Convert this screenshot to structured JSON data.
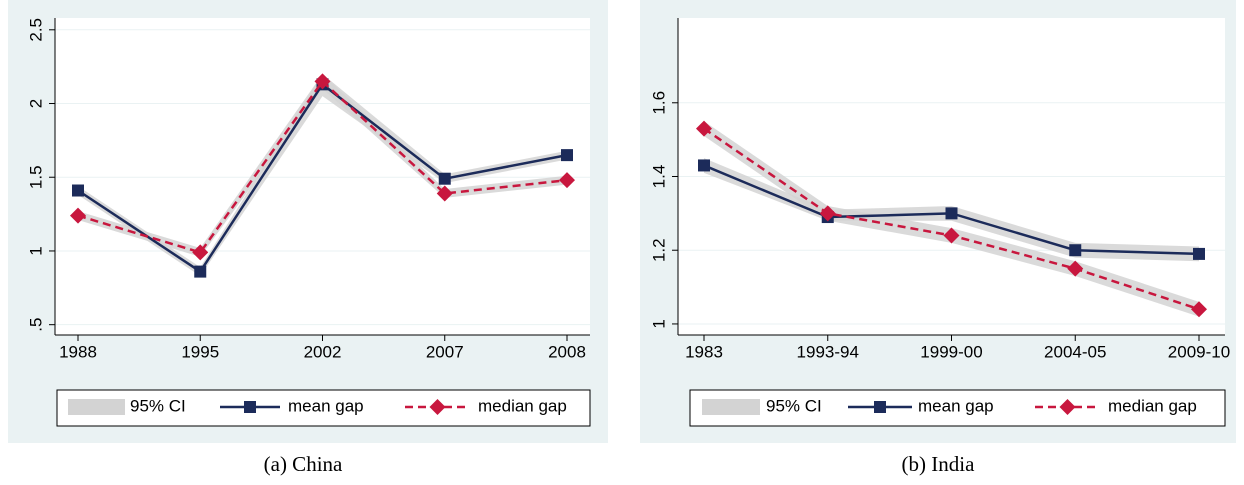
{
  "chart_data": [
    {
      "type": "line",
      "caption": "(a) China",
      "ci_label": "95% CI",
      "categories": [
        "1988",
        "1995",
        "2002",
        "2007",
        "2008"
      ],
      "ylim": [
        0.43,
        2.58
      ],
      "yticks": [
        {
          "value": 0.5,
          "label": ".5"
        },
        1,
        1.5,
        2,
        2.5
      ],
      "grid": true,
      "series": [
        {
          "name": "mean gap",
          "color": "#1c2b5a",
          "marker": "square",
          "dashed": false,
          "values": [
            1.41,
            0.86,
            2.13,
            1.49,
            1.65
          ],
          "ci_lower": [
            1.38,
            0.83,
            2.05,
            1.46,
            1.62
          ],
          "ci_upper": [
            1.44,
            0.89,
            2.2,
            1.52,
            1.68
          ]
        },
        {
          "name": "median gap",
          "color": "#c8173e",
          "marker": "diamond",
          "dashed": true,
          "values": [
            1.24,
            0.99,
            2.15,
            1.39,
            1.48
          ],
          "ci_lower": [
            1.21,
            0.96,
            2.1,
            1.36,
            1.45
          ],
          "ci_upper": [
            1.27,
            1.02,
            2.2,
            1.42,
            1.51
          ]
        }
      ]
    },
    {
      "type": "line",
      "caption": "(b) India",
      "ci_label": "95% CI",
      "categories": [
        "1983",
        "1993-94",
        "1999-00",
        "2004-05",
        "2009-10"
      ],
      "ylim": [
        0.97,
        1.83
      ],
      "yticks": [
        1,
        1.2,
        1.4,
        1.6
      ],
      "grid": true,
      "series": [
        {
          "name": "mean gap",
          "color": "#1c2b5a",
          "marker": "square",
          "dashed": false,
          "values": [
            1.43,
            1.29,
            1.3,
            1.2,
            1.19
          ],
          "ci_lower": [
            1.41,
            1.28,
            1.28,
            1.18,
            1.17
          ],
          "ci_upper": [
            1.45,
            1.31,
            1.32,
            1.22,
            1.21
          ]
        },
        {
          "name": "median gap",
          "color": "#c8173e",
          "marker": "diamond",
          "dashed": true,
          "values": [
            1.53,
            1.3,
            1.24,
            1.15,
            1.04
          ],
          "ci_lower": [
            1.51,
            1.28,
            1.22,
            1.13,
            1.02
          ],
          "ci_upper": [
            1.55,
            1.32,
            1.26,
            1.17,
            1.06
          ]
        }
      ]
    }
  ]
}
